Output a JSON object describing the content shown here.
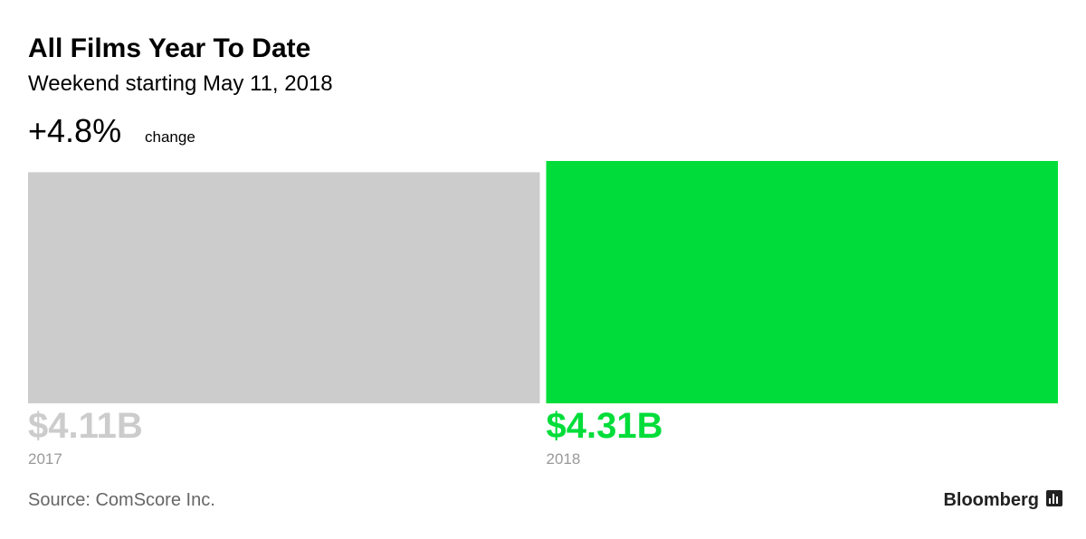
{
  "chart_data": {
    "type": "bar",
    "title": "All Films Year To Date",
    "subtitle": "Weekend starting May 11, 2018",
    "headline": "+4.8%",
    "headline_label": "change",
    "categories": [
      "2017",
      "2018"
    ],
    "values": [
      4.11,
      4.31
    ],
    "value_labels": [
      "$4.11B",
      "$4.31B"
    ],
    "colors": [
      "#cccccc",
      "#00dd3a"
    ],
    "source": "Source: ComScore Inc.",
    "brand": "Bloomberg"
  }
}
